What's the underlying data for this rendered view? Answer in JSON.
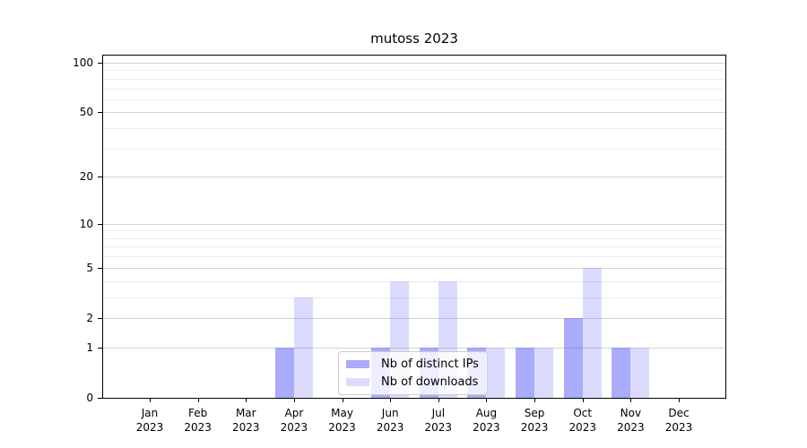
{
  "chart_data": {
    "type": "bar",
    "title": "mutoss 2023",
    "x": [
      {
        "month": "Jan",
        "year": "2023"
      },
      {
        "month": "Feb",
        "year": "2023"
      },
      {
        "month": "Mar",
        "year": "2023"
      },
      {
        "month": "Apr",
        "year": "2023"
      },
      {
        "month": "May",
        "year": "2023"
      },
      {
        "month": "Jun",
        "year": "2023"
      },
      {
        "month": "Jul",
        "year": "2023"
      },
      {
        "month": "Aug",
        "year": "2023"
      },
      {
        "month": "Sep",
        "year": "2023"
      },
      {
        "month": "Oct",
        "year": "2023"
      },
      {
        "month": "Nov",
        "year": "2023"
      },
      {
        "month": "Dec",
        "year": "2023"
      }
    ],
    "series": [
      {
        "name": "Nb of distinct IPs",
        "color": "rgba(85,88,245,0.5)",
        "values": [
          0,
          0,
          0,
          1,
          0,
          1,
          1,
          1,
          1,
          2,
          1,
          0
        ]
      },
      {
        "name": "Nb of downloads",
        "color": "rgba(85,88,245,0.21)",
        "values": [
          0,
          0,
          0,
          3,
          0,
          4,
          4,
          1,
          1,
          5,
          1,
          0
        ]
      }
    ],
    "yscale": "log1p",
    "ylim": [
      0,
      112
    ],
    "y_major_ticks": [
      0,
      1,
      2,
      5,
      10,
      20,
      50,
      100
    ],
    "y_minor_ticks": [
      3,
      4,
      6,
      7,
      8,
      9,
      30,
      40,
      60,
      70,
      80,
      90
    ],
    "grid": "horizontal",
    "legend_position": "lower center inside"
  },
  "colors": {
    "background": "#ffffff",
    "axis": "#000000",
    "grid_major": "#d4d4d4",
    "grid_minor": "#ececec",
    "bar_distinct_ips": "rgba(85,88,245,0.5)",
    "bar_downloads": "rgba(85,88,245,0.21)",
    "legend_border": "#cccccc"
  }
}
